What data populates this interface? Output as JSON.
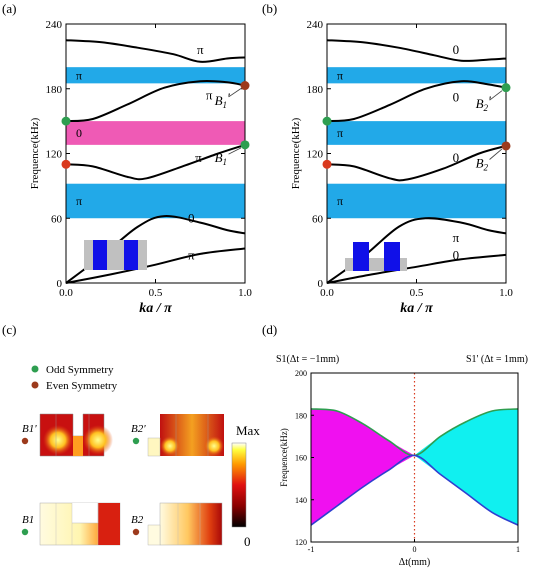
{
  "panels": {
    "a": {
      "label": "(a)",
      "chart_data": {
        "type": "line",
        "title": "",
        "xlabel": "ka / π",
        "ylabel": "Frequence(kHz)",
        "xlim": [
          0,
          1
        ],
        "ylim": [
          0,
          240
        ],
        "xticks": [
          "0.0",
          "0.5",
          "1.0"
        ],
        "yticks": [
          "0",
          "60",
          "120",
          "180",
          "240"
        ],
        "series": [
          {
            "x": [
              0,
              0.25,
              0.5,
              0.75,
              1.0
            ],
            "y": [
              0,
              8,
              17,
              27,
              32
            ]
          },
          {
            "x": [
              0,
              0.2,
              0.4,
              0.55,
              0.75,
              0.9,
              1.0
            ],
            "y": [
              0,
              25,
              52,
              62,
              56,
              49,
              46
            ]
          },
          {
            "x": [
              0,
              0.15,
              0.35,
              0.45,
              0.65,
              0.85,
              1.0
            ],
            "y": [
              110,
              108,
              98,
              97,
              108,
              120,
              128
            ]
          },
          {
            "x": [
              0,
              0.15,
              0.35,
              0.55,
              0.75,
              0.9,
              1.0
            ],
            "y": [
              150,
              152,
              166,
              181,
              187,
              186,
              183
            ]
          },
          {
            "x": [
              0,
              0.2,
              0.4,
              0.6,
              0.75,
              0.9,
              1.0
            ],
            "y": [
              225,
              223,
              218,
              212,
              205,
              208,
              209
            ]
          }
        ],
        "bands": [
          {
            "from": 185,
            "to": 200,
            "color": "#22a9e8",
            "label": "π"
          },
          {
            "from": 128,
            "to": 150,
            "color": "#ef5ab5",
            "label": "0"
          },
          {
            "from": 60,
            "to": 92,
            "color": "#22a9e8",
            "label": "π"
          }
        ],
        "curve_labels": [
          {
            "text": "π",
            "x": 0.75,
            "y": 212
          },
          {
            "text": "π",
            "x": 0.8,
            "y": 170
          },
          {
            "text": "π",
            "x": 0.74,
            "y": 112
          },
          {
            "text": "0",
            "x": 0.7,
            "y": 56
          },
          {
            "text": "π",
            "x": 0.7,
            "y": 22
          }
        ],
        "markers": [
          {
            "x": 0,
            "y": 150,
            "color": "#2e9e50"
          },
          {
            "x": 0,
            "y": 110,
            "color": "#d93a1e"
          },
          {
            "x": 1.0,
            "y": 183,
            "color": "#9c3a1c"
          },
          {
            "x": 1.0,
            "y": 128,
            "color": "#2e9e50"
          }
        ],
        "annotations": [
          {
            "text": "B1'",
            "x": 0.83,
            "y": 165
          },
          {
            "text": "B1",
            "x": 0.83,
            "y": 112
          }
        ]
      }
    },
    "b": {
      "label": "(b)",
      "chart_data": {
        "type": "line",
        "title": "",
        "xlabel": "ka / π",
        "ylabel": "Frequence(kHz)",
        "xlim": [
          0,
          1
        ],
        "ylim": [
          0,
          240
        ],
        "xticks": [
          "0.0",
          "0.5",
          "1.0"
        ],
        "yticks": [
          "0",
          "60",
          "120",
          "180",
          "240"
        ],
        "series": [
          {
            "x": [
              0,
              0.25,
              0.5,
              0.75,
              1.0
            ],
            "y": [
              0,
              8,
              15,
              22,
              26
            ]
          },
          {
            "x": [
              0,
              0.2,
              0.4,
              0.55,
              0.75,
              0.9,
              1.0
            ],
            "y": [
              0,
              24,
              52,
              60,
              56,
              49,
              46
            ]
          },
          {
            "x": [
              0,
              0.15,
              0.35,
              0.45,
              0.65,
              0.85,
              1.0
            ],
            "y": [
              110,
              108,
              97,
              96,
              106,
              120,
              127
            ]
          },
          {
            "x": [
              0,
              0.15,
              0.35,
              0.55,
              0.75,
              0.9,
              1.0
            ],
            "y": [
              150,
              152,
              165,
              180,
              187,
              184,
              181
            ]
          },
          {
            "x": [
              0,
              0.2,
              0.4,
              0.6,
              0.75,
              0.9,
              1.0
            ],
            "y": [
              225,
              223,
              218,
              211,
              206,
              207,
              208
            ]
          }
        ],
        "bands": [
          {
            "from": 185,
            "to": 200,
            "color": "#22a9e8",
            "label": "π"
          },
          {
            "from": 128,
            "to": 150,
            "color": "#22a9e8",
            "label": "π"
          },
          {
            "from": 60,
            "to": 92,
            "color": "#22a9e8",
            "label": "π"
          }
        ],
        "curve_labels": [
          {
            "text": "0",
            "x": 0.72,
            "y": 212
          },
          {
            "text": "0",
            "x": 0.72,
            "y": 168
          },
          {
            "text": "0",
            "x": 0.72,
            "y": 112
          },
          {
            "text": "π",
            "x": 0.72,
            "y": 38
          },
          {
            "text": "0",
            "x": 0.72,
            "y": 22
          }
        ],
        "markers": [
          {
            "x": 0,
            "y": 150,
            "color": "#2e9e50"
          },
          {
            "x": 0,
            "y": 110,
            "color": "#d93a1e"
          },
          {
            "x": 1.0,
            "y": 181,
            "color": "#2e9e50"
          },
          {
            "x": 1.0,
            "y": 127,
            "color": "#9c3a1c"
          }
        ],
        "annotations": [
          {
            "text": "B2'",
            "x": 0.83,
            "y": 162
          },
          {
            "text": "B2",
            "x": 0.83,
            "y": 107
          }
        ]
      }
    },
    "c": {
      "label": "(c)",
      "legend": [
        {
          "text": "Odd Symmetry",
          "color": "#2e9e50"
        },
        {
          "text": "Even Symmetry",
          "color": "#9c3a1c"
        }
      ],
      "colorbar": {
        "max_label": "Max",
        "min_label": "0"
      },
      "mode_labels": {
        "b1p": "B1'",
        "b2p": "B2'",
        "b1": "B1",
        "b2": "B2"
      }
    },
    "d": {
      "label": "(d)",
      "left_caption": "S1(Δt = −1mm)",
      "right_caption": "S1' (Δt = 1mm)",
      "chart_data": {
        "type": "area",
        "title": "",
        "xlabel": "Δt(mm)",
        "ylabel": "Frequence(kHz)",
        "xlim": [
          -1,
          1
        ],
        "ylim": [
          120,
          200
        ],
        "xticks": [
          "-1",
          "0",
          "1"
        ],
        "yticks": [
          "120",
          "140",
          "160",
          "180",
          "200"
        ],
        "grid": false,
        "series": [
          {
            "x": [
              -1,
              -0.75,
              -0.5,
              -0.25,
              0,
              0.25,
              0.5,
              0.75,
              1
            ],
            "y": [
              183,
              182,
              176,
              168,
              161,
              170,
              177,
              182,
              183
            ],
            "color": "#2e9e50"
          },
          {
            "x": [
              -1,
              -0.75,
              -0.5,
              -0.25,
              0,
              0.25,
              0.5,
              0.75,
              1
            ],
            "y": [
              128,
              137,
              146,
              154,
              161,
              152,
              143,
              134,
              128
            ],
            "color": "#2f3fd0"
          }
        ],
        "fills": [
          {
            "range": [
              -1,
              0
            ],
            "color": "#f010f0"
          },
          {
            "range": [
              0,
              1
            ],
            "color": "#10f0f0"
          }
        ],
        "vline": {
          "x": 0,
          "color": "#d93a1e",
          "style": "dotted"
        }
      }
    }
  }
}
